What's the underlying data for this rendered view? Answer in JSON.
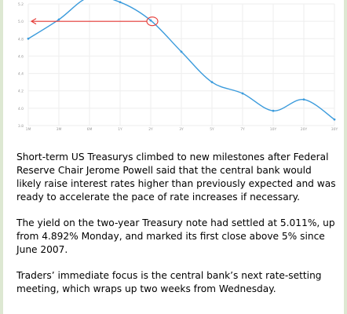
{
  "chart_data": {
    "type": "line",
    "categories": [
      "1M",
      "3M",
      "6M",
      "1Y",
      "2Y",
      "3Y",
      "5Y",
      "7Y",
      "10Y",
      "20Y",
      "30Y"
    ],
    "values": [
      4.8,
      5.02,
      5.28,
      5.22,
      5.01,
      4.65,
      4.3,
      4.17,
      3.97,
      4.1,
      3.87
    ],
    "ylim": [
      3.8,
      5.2
    ],
    "y_ticks": [
      "5.2",
      "5.0",
      "4.8",
      "4.6",
      "4.4",
      "4.2",
      "4.0",
      "3.8"
    ],
    "grid": true,
    "annotation": {
      "type": "arrow",
      "at_category": "2Y",
      "at_value": 5.0,
      "points_to": "y-axis",
      "color": "#e53935"
    },
    "colors": {
      "line": "#3b9bdc",
      "grid": "#eeeeee",
      "tick": "#999999",
      "annotation": "#e53935"
    }
  },
  "message": {
    "paragraphs": [
      "Short-term US Treasurys climbed to new milestones after Federal Reserve Chair Jerome Powell said that the central bank would likely raise interest rates higher than previously expected and was ready to accelerate the pace of rate increases if necessary.",
      "The yield on the two-year Treasury note had settled at 5.011%, up from 4.892% Monday, and marked its first close above 5% since June 2007.",
      "Traders’ immediate focus is the central bank’s next rate-setting meeting, which wraps up two weeks from Wednesday."
    ]
  }
}
